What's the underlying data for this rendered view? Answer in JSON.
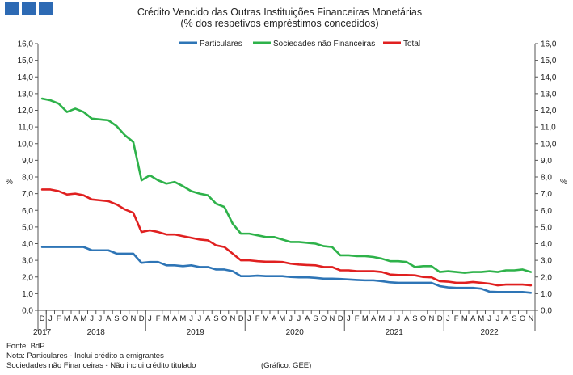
{
  "header": {
    "logo_color": "#2d6ab4"
  },
  "chart_data": {
    "type": "line",
    "title": "Crédito Vencido das Outras Instituições Financeiras Monetárias",
    "subtitle": "(% dos respetivos empréstimos concedidos)",
    "ylabel_left": "%",
    "ylabel_right": "%",
    "ylim": [
      0,
      16
    ],
    "y_ticks": [
      "0,0",
      "1,0",
      "2,0",
      "3,0",
      "4,0",
      "5,0",
      "6,0",
      "7,0",
      "8,0",
      "9,0",
      "10,0",
      "11,0",
      "12,0",
      "13,0",
      "14,0",
      "15,0",
      "16,0"
    ],
    "x": [
      "2017-12",
      "2018-01",
      "2018-02",
      "2018-03",
      "2018-04",
      "2018-05",
      "2018-06",
      "2018-07",
      "2018-08",
      "2018-09",
      "2018-10",
      "2018-11",
      "2018-12",
      "2019-01",
      "2019-02",
      "2019-03",
      "2019-04",
      "2019-05",
      "2019-06",
      "2019-07",
      "2019-08",
      "2019-09",
      "2019-10",
      "2019-11",
      "2019-12",
      "2020-01",
      "2020-02",
      "2020-03",
      "2020-04",
      "2020-05",
      "2020-06",
      "2020-07",
      "2020-08",
      "2020-09",
      "2020-10",
      "2020-11",
      "2020-12",
      "2021-01",
      "2021-02",
      "2021-03",
      "2021-04",
      "2021-05",
      "2021-06",
      "2021-07",
      "2021-08",
      "2021-09",
      "2021-10",
      "2021-11",
      "2021-12",
      "2022-01",
      "2022-02",
      "2022-03",
      "2022-04",
      "2022-05",
      "2022-06",
      "2022-07",
      "2022-08",
      "2022-09",
      "2022-10",
      "2022-11"
    ],
    "month_labels": [
      "D",
      "J",
      "F",
      "M",
      "A",
      "M",
      "J",
      "J",
      "A",
      "S",
      "O",
      "N",
      "D",
      "J",
      "F",
      "M",
      "A",
      "M",
      "J",
      "J",
      "A",
      "S",
      "O",
      "N",
      "D",
      "J",
      "F",
      "M",
      "A",
      "M",
      "J",
      "J",
      "A",
      "S",
      "O",
      "N",
      "D",
      "J",
      "F",
      "M",
      "A",
      "M",
      "J",
      "J",
      "A",
      "S",
      "O",
      "N",
      "D",
      "J",
      "F",
      "M",
      "A",
      "M",
      "J",
      "J",
      "A",
      "S",
      "O",
      "N"
    ],
    "year_labels": [
      {
        "label": "2017",
        "start": 0,
        "end": 0
      },
      {
        "label": "2018",
        "start": 1,
        "end": 12
      },
      {
        "label": "2019",
        "start": 13,
        "end": 24
      },
      {
        "label": "2020",
        "start": 25,
        "end": 36
      },
      {
        "label": "2021",
        "start": 37,
        "end": 48
      },
      {
        "label": "2022",
        "start": 49,
        "end": 59
      }
    ],
    "series": [
      {
        "name": "Particulares",
        "color": "#2e75b6",
        "values": [
          3.8,
          3.8,
          3.8,
          3.8,
          3.8,
          3.8,
          3.6,
          3.6,
          3.6,
          3.4,
          3.4,
          3.4,
          2.85,
          2.9,
          2.9,
          2.7,
          2.7,
          2.65,
          2.7,
          2.6,
          2.6,
          2.45,
          2.45,
          2.35,
          2.05,
          2.05,
          2.08,
          2.05,
          2.05,
          2.05,
          2.0,
          1.98,
          1.98,
          1.95,
          1.9,
          1.9,
          1.88,
          1.85,
          1.82,
          1.8,
          1.8,
          1.75,
          1.68,
          1.65,
          1.65,
          1.65,
          1.65,
          1.65,
          1.45,
          1.38,
          1.35,
          1.35,
          1.35,
          1.3,
          1.12,
          1.1,
          1.1,
          1.1,
          1.1,
          1.05
        ]
      },
      {
        "name": "Sociedades não Financeiras",
        "color": "#2eb24a",
        "values": [
          12.7,
          12.6,
          12.4,
          11.9,
          12.1,
          11.9,
          11.5,
          11.45,
          11.4,
          11.05,
          10.5,
          10.1,
          7.8,
          8.1,
          7.8,
          7.6,
          7.7,
          7.45,
          7.15,
          7.0,
          6.9,
          6.4,
          6.2,
          5.2,
          4.6,
          4.6,
          4.5,
          4.4,
          4.4,
          4.25,
          4.1,
          4.1,
          4.05,
          4.0,
          3.85,
          3.8,
          3.3,
          3.3,
          3.25,
          3.25,
          3.2,
          3.1,
          2.95,
          2.95,
          2.9,
          2.6,
          2.65,
          2.65,
          2.3,
          2.35,
          2.3,
          2.25,
          2.3,
          2.3,
          2.35,
          2.3,
          2.4,
          2.4,
          2.45,
          2.3
        ]
      },
      {
        "name": "Total",
        "color": "#e02020",
        "values": [
          7.25,
          7.25,
          7.15,
          6.95,
          7.0,
          6.9,
          6.65,
          6.6,
          6.55,
          6.35,
          6.05,
          5.85,
          4.7,
          4.8,
          4.7,
          4.55,
          4.55,
          4.45,
          4.35,
          4.25,
          4.2,
          3.9,
          3.8,
          3.4,
          3.0,
          3.0,
          2.95,
          2.92,
          2.92,
          2.9,
          2.8,
          2.75,
          2.72,
          2.7,
          2.6,
          2.6,
          2.4,
          2.4,
          2.35,
          2.35,
          2.35,
          2.3,
          2.15,
          2.12,
          2.12,
          2.1,
          2.0,
          1.98,
          1.75,
          1.72,
          1.65,
          1.65,
          1.7,
          1.65,
          1.6,
          1.5,
          1.55,
          1.55,
          1.55,
          1.5
        ]
      }
    ],
    "legend_position": "top-center",
    "grid": false
  },
  "footer": {
    "source": "Fonte: BdP",
    "note1": "Nota: Particulares - Inclui crédito a emigrantes",
    "note2": "Sociedades não Financeiras - Não inclui crédito titulado",
    "credit": "(Gráfico: GEE)"
  }
}
